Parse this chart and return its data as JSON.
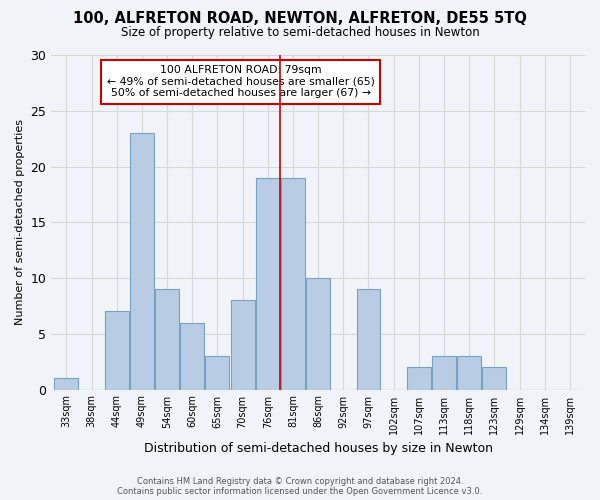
{
  "title": "100, ALFRETON ROAD, NEWTON, ALFRETON, DE55 5TQ",
  "subtitle": "Size of property relative to semi-detached houses in Newton",
  "xlabel": "Distribution of semi-detached houses by size in Newton",
  "ylabel": "Number of semi-detached properties",
  "footer_line1": "Contains HM Land Registry data © Crown copyright and database right 2024.",
  "footer_line2": "Contains public sector information licensed under the Open Government Licence v3.0.",
  "annotation_title": "100 ALFRETON ROAD: 79sqm",
  "annotation_line2": "← 49% of semi-detached houses are smaller (65)",
  "annotation_line3": "50% of semi-detached houses are larger (67) →",
  "bin_labels": [
    "33sqm",
    "38sqm",
    "44sqm",
    "49sqm",
    "54sqm",
    "60sqm",
    "65sqm",
    "70sqm",
    "76sqm",
    "81sqm",
    "86sqm",
    "92sqm",
    "97sqm",
    "102sqm",
    "107sqm",
    "113sqm",
    "118sqm",
    "123sqm",
    "129sqm",
    "134sqm",
    "139sqm"
  ],
  "bar_values": [
    1,
    0,
    7,
    23,
    9,
    6,
    3,
    8,
    19,
    19,
    10,
    0,
    9,
    0,
    2,
    3,
    3,
    2,
    0,
    0,
    0
  ],
  "bar_color": "#b8cce4",
  "bar_edge_color": "#7aa0c4",
  "grid_color": "#d8d8d8",
  "background_color": "#f0f4f8",
  "vline_x": 8.5,
  "vline_color": "#cc0000",
  "annotation_box_edge_color": "#cc0000",
  "ylim": [
    0,
    30
  ],
  "yticks": [
    0,
    5,
    10,
    15,
    20,
    25,
    30
  ]
}
